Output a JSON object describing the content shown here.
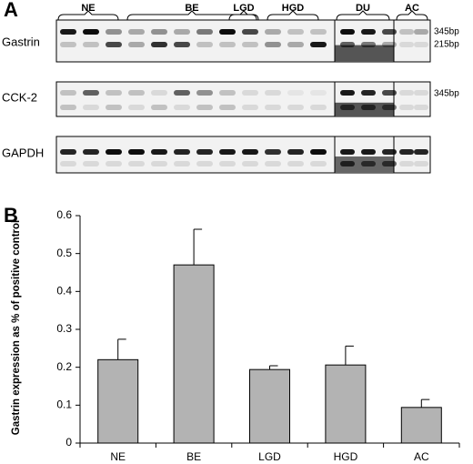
{
  "panel_a": {
    "label": "A",
    "groups": [
      "NE",
      "BE",
      "LGD",
      "HGD",
      "DU",
      "AC"
    ],
    "rows": [
      {
        "name": "Gastrin",
        "sizes": [
          "345bp",
          "215bp"
        ]
      },
      {
        "name": "CCK-2",
        "sizes": [
          "345bp"
        ]
      },
      {
        "name": "GAPDH"
      }
    ]
  },
  "chart_data": {
    "type": "bar",
    "panel_label": "B",
    "ylabel": "Gastrin expression as % of positive control",
    "categories": [
      "NE",
      "BE",
      "LGD",
      "HGD",
      "AC"
    ],
    "values": [
      0.22,
      0.47,
      0.194,
      0.206,
      0.094
    ],
    "errors": [
      0.054,
      0.094,
      0.01,
      0.05,
      0.021
    ],
    "color": "#b3b3b3",
    "ylim": [
      0,
      0.6
    ],
    "yticks": [
      0,
      0.1,
      0.2,
      0.3,
      0.4,
      0.5,
      0.6
    ]
  }
}
